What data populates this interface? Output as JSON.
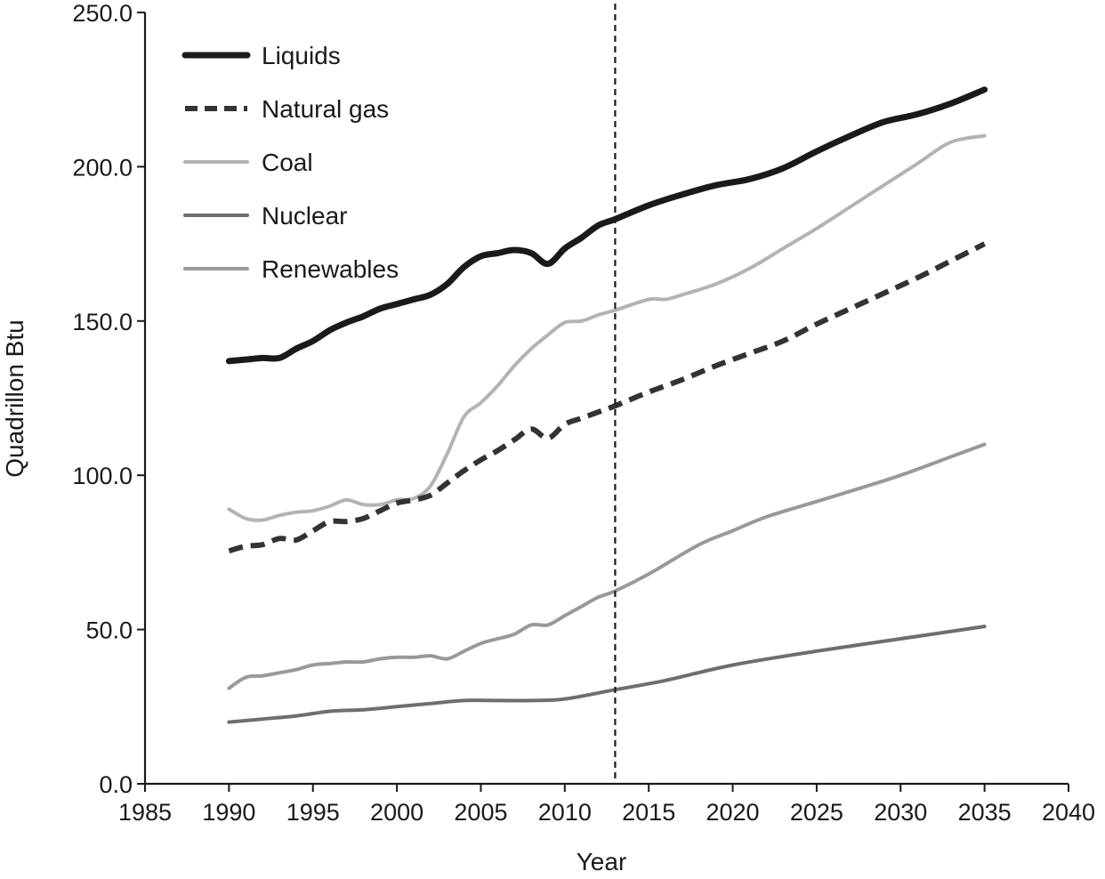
{
  "chart_data": {
    "type": "line",
    "title": "",
    "xlabel": "Year",
    "ylabel": "Quadrillon Btu",
    "xlim": [
      1985,
      2040
    ],
    "ylim": [
      0,
      250
    ],
    "xticks": [
      1985,
      1990,
      1995,
      2000,
      2005,
      2010,
      2015,
      2020,
      2025,
      2030,
      2035,
      2040
    ],
    "yticks": [
      0,
      50,
      100,
      150,
      200,
      250
    ],
    "xtick_labels": [
      "1985",
      "1990",
      "1995",
      "2000",
      "2005",
      "2010",
      "2015",
      "2020",
      "2025",
      "2030",
      "2035",
      "2040"
    ],
    "ytick_labels": [
      "0.0",
      "50.0",
      "100.0",
      "150.0",
      "200.0",
      "250.0"
    ],
    "grid": false,
    "legend_position": "top-left",
    "reference_line": {
      "x": 2013,
      "style": "dashed"
    },
    "series": [
      {
        "name": "Liquids",
        "color": "#1a1a1a",
        "style": "solid-thick",
        "x": [
          1990,
          1991,
          1992,
          1993,
          1994,
          1995,
          1996,
          1997,
          1998,
          1999,
          2000,
          2001,
          2002,
          2003,
          2004,
          2005,
          2006,
          2007,
          2008,
          2009,
          2010,
          2011,
          2012,
          2013,
          2015,
          2017,
          2019,
          2021,
          2023,
          2025,
          2027,
          2029,
          2031,
          2033,
          2035
        ],
        "y": [
          137,
          137.5,
          138,
          138,
          141,
          143.5,
          147,
          149.5,
          151.5,
          154,
          155.5,
          157,
          158.5,
          162,
          167.5,
          171,
          172,
          173,
          172,
          168.5,
          173.5,
          177,
          181,
          183,
          187.5,
          191,
          194,
          196,
          199.5,
          205,
          210,
          214.5,
          217,
          220.5,
          225
        ]
      },
      {
        "name": "Natural gas",
        "color": "#333333",
        "style": "dashed-thick",
        "x": [
          1990,
          1991,
          1992,
          1993,
          1994,
          1995,
          1996,
          1997,
          1998,
          1999,
          2000,
          2001,
          2002,
          2003,
          2004,
          2005,
          2006,
          2007,
          2008,
          2009,
          2010,
          2011,
          2012,
          2013,
          2015,
          2017,
          2019,
          2021,
          2023,
          2025,
          2027,
          2029,
          2031,
          2033,
          2035
        ],
        "y": [
          75.5,
          77,
          77.5,
          79.5,
          79,
          82,
          85,
          85,
          86,
          88.5,
          91,
          92,
          93.5,
          97.5,
          101.5,
          105,
          108,
          111.5,
          115,
          112,
          116.5,
          118.5,
          120.5,
          122.5,
          127,
          131,
          135.5,
          139.5,
          143.5,
          149,
          154,
          159,
          164,
          169.5,
          175
        ]
      },
      {
        "name": "Coal",
        "color": "#b3b3b3",
        "style": "solid",
        "x": [
          1990,
          1991,
          1992,
          1993,
          1994,
          1995,
          1996,
          1997,
          1998,
          1999,
          2000,
          2001,
          2002,
          2003,
          2004,
          2005,
          2006,
          2007,
          2008,
          2009,
          2010,
          2011,
          2012,
          2013,
          2015,
          2016,
          2017,
          2019,
          2021,
          2023,
          2025,
          2027,
          2029,
          2031,
          2033,
          2035
        ],
        "y": [
          89,
          86,
          85.5,
          87,
          88,
          88.5,
          90,
          92,
          90.5,
          90.5,
          92,
          92.5,
          96.5,
          107,
          119,
          123.5,
          129,
          135.5,
          141,
          145.5,
          149.5,
          150,
          152,
          153.5,
          157,
          157,
          158.5,
          162,
          167,
          173.5,
          180,
          187,
          194,
          201,
          208,
          210
        ]
      },
      {
        "name": "Nuclear",
        "color": "#6e6e6e",
        "style": "solid",
        "x": [
          1990,
          1992,
          1994,
          1996,
          1998,
          2000,
          2002,
          2004,
          2006,
          2008,
          2010,
          2013,
          2016,
          2020,
          2025,
          2030,
          2035
        ],
        "y": [
          20,
          21,
          22,
          23.5,
          24,
          25,
          26,
          27,
          27,
          27,
          27.5,
          30.5,
          33.5,
          38.5,
          43,
          47,
          51
        ]
      },
      {
        "name": "Renewables",
        "color": "#999999",
        "style": "solid",
        "x": [
          1990,
          1991,
          1992,
          1993,
          1994,
          1995,
          1996,
          1997,
          1998,
          1999,
          2000,
          2001,
          2002,
          2003,
          2004,
          2005,
          2006,
          2007,
          2008,
          2009,
          2010,
          2011,
          2012,
          2013,
          2015,
          2018,
          2020,
          2022,
          2025,
          2028,
          2030,
          2033,
          2035
        ],
        "y": [
          31,
          34.5,
          35,
          36,
          37,
          38.5,
          39,
          39.5,
          39.5,
          40.5,
          41,
          41,
          41.5,
          40.5,
          43,
          45.5,
          47,
          48.5,
          51.5,
          51.5,
          54.5,
          57.5,
          60.5,
          62.5,
          68,
          77.5,
          82,
          86.5,
          91.5,
          96.5,
          100,
          106,
          110
        ]
      }
    ]
  }
}
